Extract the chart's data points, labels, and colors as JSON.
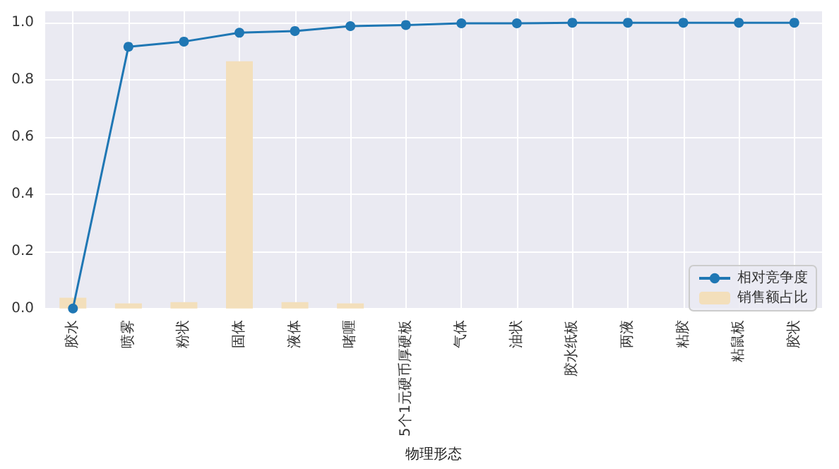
{
  "chart_data": {
    "type": "bar",
    "xlabel": "物理形态",
    "categories": [
      "胶水",
      "喷雾",
      "粉状",
      "固体",
      "液体",
      "啫喱",
      "5个1元硬币厚硬板",
      "气体",
      "油状",
      "胶水纸板",
      "两液",
      "粘胶",
      "粘鼠板",
      "胶状"
    ],
    "series": [
      {
        "name": "相对竞争度",
        "type": "line",
        "color": "#1f77b4",
        "marker": "circle",
        "values": [
          0,
          0.916,
          0.934,
          0.965,
          0.971,
          0.988,
          0.992,
          0.998,
          0.998,
          1.0,
          1.0,
          1.0,
          1.0,
          1.0
        ]
      },
      {
        "name": "销售额占比",
        "color": "#f3dfbb",
        "values": [
          0.038,
          0.018,
          0.022,
          0.865,
          0.022,
          0.018,
          0,
          0,
          0,
          0,
          0,
          0,
          0,
          0
        ]
      }
    ],
    "ylim": [
      0,
      1.04
    ],
    "yticks": [
      {
        "value": 0,
        "label": "0.0"
      },
      0.2,
      0.4,
      0.6,
      0.8,
      {
        "value": 1,
        "label": "1.0"
      }
    ],
    "grid": true,
    "legend": "bottom right"
  }
}
